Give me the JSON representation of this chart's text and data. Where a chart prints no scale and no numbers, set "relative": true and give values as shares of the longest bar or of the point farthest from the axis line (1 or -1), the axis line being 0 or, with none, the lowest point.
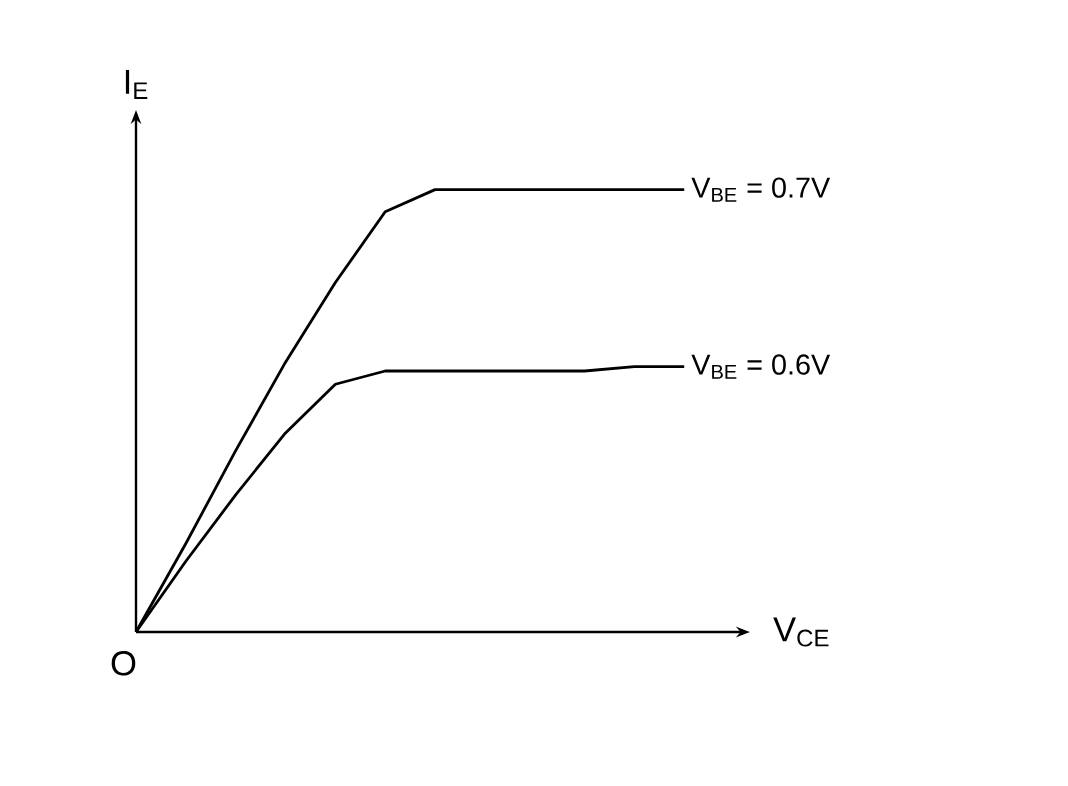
{
  "chart_data": {
    "type": "line",
    "relative": true,
    "xlabel": "V$_{CE}$",
    "ylabel": "I$_{E}$",
    "categories": [
      null,
      null,
      null,
      null,
      null,
      null,
      null,
      null,
      null,
      null,
      null,
      null
    ],
    "series": [
      {
        "name": "V$_{BE}$ = 0.7V",
        "color": "#000000",
        "values": [
          0,
          0.2,
          0.41,
          0.61,
          0.79,
          0.95,
          1,
          1,
          1,
          1,
          1,
          1
        ]
      },
      {
        "name": "V$_{BE}$ = 0.6V",
        "color": "#000000",
        "values": [
          0,
          0.16,
          0.31,
          0.45,
          0.56,
          0.59,
          0.59,
          0.59,
          0.59,
          0.59,
          0.6,
          0.6
        ]
      }
    ],
    "marker": "none",
    "line_style": "solid",
    "legend": false,
    "annotations": [
      "O"
    ]
  }
}
